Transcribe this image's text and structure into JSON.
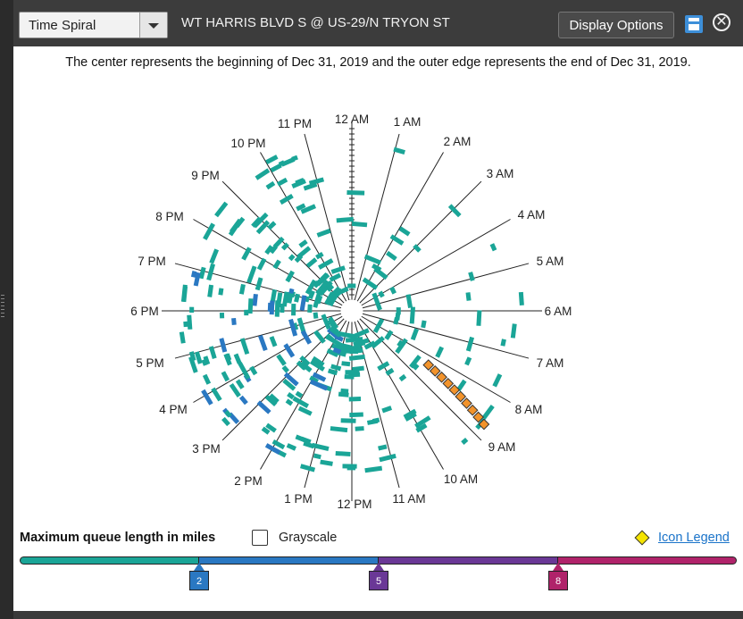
{
  "toolbar": {
    "view_select": "Time Spiral",
    "location": "WT HARRIS BLVD S @ US-29/N TRYON ST",
    "display_options_label": "Display Options",
    "save_icon": "save-icon",
    "close_icon": "close-icon",
    "close_glyph": "✕"
  },
  "description": "The center represents the beginning of Dec 31, 2019 and the outer edge represents the end of Dec 31, 2019.",
  "spiral": {
    "hour_labels": [
      "12 AM",
      "1 AM",
      "2 AM",
      "3 AM",
      "4 AM",
      "5 AM",
      "6 AM",
      "7 AM",
      "8 AM",
      "9 AM",
      "10 AM",
      "11 AM",
      "12 PM",
      "1 PM",
      "2 PM",
      "3 PM",
      "4 PM",
      "5 PM",
      "6 PM",
      "7 PM",
      "8 PM",
      "9 PM",
      "10 PM",
      "11 PM"
    ],
    "colors": {
      "low": "#1aa597",
      "mid": "#2a78c2",
      "event": "#f2932b",
      "line": "#222222"
    }
  },
  "legend": {
    "title": "Maximum queue length in miles",
    "grayscale_label": "Grayscale",
    "icon_legend_label": "Icon Legend",
    "scale_colors": [
      "#1aa597",
      "#2a78c2",
      "#6a3896",
      "#b0236a"
    ],
    "markers": [
      {
        "value": "2",
        "color": "#2a78c2"
      },
      {
        "value": "5",
        "color": "#6a3896"
      },
      {
        "value": "8",
        "color": "#b0236a"
      }
    ]
  }
}
